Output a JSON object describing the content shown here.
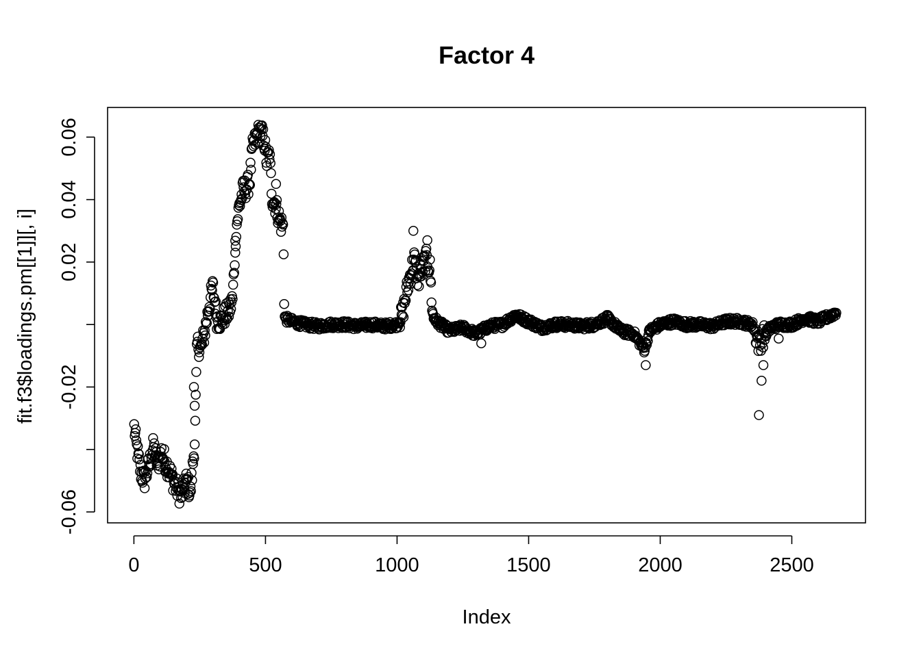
{
  "chart_data": {
    "type": "scatter",
    "title": "Factor 4",
    "xlabel": "Index",
    "ylabel": "fit.f3$loadings.pm[[1]][, i]",
    "xlim": [
      -100,
      2780
    ],
    "ylim": [
      -0.0635,
      0.0695
    ],
    "xticks": [
      0,
      500,
      1000,
      1500,
      2000,
      2500
    ],
    "xtick_labels": [
      "0",
      "500",
      "1000",
      "1500",
      "2000",
      "2500"
    ],
    "yticks": [
      -0.06,
      -0.04,
      -0.02,
      0.0,
      0.02,
      0.04,
      0.06
    ],
    "ytick_labels": [
      "-0.06",
      "",
      "-0.02",
      "",
      "0.02",
      "0.04",
      "0.06"
    ],
    "marker": "open-circle",
    "grid": false,
    "legend": "none",
    "n_points": 2670,
    "trend": [
      [
        1,
        -0.033
      ],
      [
        10,
        -0.039
      ],
      [
        25,
        -0.047
      ],
      [
        40,
        -0.05
      ],
      [
        60,
        -0.044
      ],
      [
        75,
        -0.039
      ],
      [
        90,
        -0.045
      ],
      [
        105,
        -0.041
      ],
      [
        120,
        -0.044
      ],
      [
        140,
        -0.048
      ],
      [
        160,
        -0.052
      ],
      [
        180,
        -0.055
      ],
      [
        200,
        -0.05
      ],
      [
        215,
        -0.054
      ],
      [
        225,
        -0.044
      ],
      [
        232,
        -0.036
      ],
      [
        240,
        -0.006
      ],
      [
        255,
        -0.008
      ],
      [
        270,
        -0.002
      ],
      [
        285,
        0.006
      ],
      [
        300,
        0.012
      ],
      [
        315,
        0.002
      ],
      [
        330,
        0.001
      ],
      [
        345,
        0.003
      ],
      [
        360,
        0.004
      ],
      [
        375,
        0.008
      ],
      [
        388,
        0.03
      ],
      [
        400,
        0.038
      ],
      [
        415,
        0.043
      ],
      [
        430,
        0.044
      ],
      [
        440,
        0.046
      ],
      [
        450,
        0.056
      ],
      [
        465,
        0.06
      ],
      [
        480,
        0.062
      ],
      [
        495,
        0.059
      ],
      [
        505,
        0.052
      ],
      [
        515,
        0.055
      ],
      [
        525,
        0.041
      ],
      [
        540,
        0.038
      ],
      [
        555,
        0.033
      ],
      [
        568,
        0.031
      ],
      [
        572,
        0.002
      ],
      [
        600,
        0.001
      ],
      [
        650,
        0.0
      ],
      [
        700,
        -0.0005
      ],
      [
        750,
        0.0
      ],
      [
        800,
        0.0
      ],
      [
        850,
        -0.0005
      ],
      [
        900,
        0.0
      ],
      [
        950,
        -0.0005
      ],
      [
        1000,
        0.0
      ],
      [
        1020,
        0.003
      ],
      [
        1035,
        0.01
      ],
      [
        1050,
        0.016
      ],
      [
        1065,
        0.021
      ],
      [
        1080,
        0.014
      ],
      [
        1095,
        0.018
      ],
      [
        1110,
        0.021
      ],
      [
        1125,
        0.018
      ],
      [
        1135,
        0.003
      ],
      [
        1150,
        0.001
      ],
      [
        1200,
        -0.002
      ],
      [
        1250,
        -0.001
      ],
      [
        1300,
        -0.003
      ],
      [
        1350,
        -0.0005
      ],
      [
        1400,
        0.0
      ],
      [
        1450,
        0.003
      ],
      [
        1500,
        0.001
      ],
      [
        1550,
        -0.001
      ],
      [
        1600,
        0.0
      ],
      [
        1650,
        0.0
      ],
      [
        1700,
        -0.0005
      ],
      [
        1750,
        0.0
      ],
      [
        1800,
        0.002
      ],
      [
        1850,
        -0.002
      ],
      [
        1900,
        -0.003
      ],
      [
        1940,
        -0.008
      ],
      [
        1960,
        -0.002
      ],
      [
        2000,
        0.0
      ],
      [
        2050,
        0.001
      ],
      [
        2100,
        0.0
      ],
      [
        2150,
        0.0
      ],
      [
        2200,
        -0.0005
      ],
      [
        2250,
        0.001
      ],
      [
        2300,
        0.001
      ],
      [
        2350,
        0.0
      ],
      [
        2375,
        -0.006
      ],
      [
        2390,
        -0.004
      ],
      [
        2420,
        -0.001
      ],
      [
        2450,
        0.0
      ],
      [
        2500,
        0.0
      ],
      [
        2550,
        0.002
      ],
      [
        2600,
        0.001
      ],
      [
        2650,
        0.003
      ],
      [
        2670,
        0.004
      ]
    ],
    "outliers": [
      [
        228,
        -0.02
      ],
      [
        231,
        -0.026
      ],
      [
        385,
        0.023
      ],
      [
        540,
        0.045
      ],
      [
        2375,
        -0.029
      ],
      [
        2385,
        -0.018
      ],
      [
        2392,
        -0.013
      ],
      [
        2450,
        -0.0045
      ],
      [
        1062,
        0.03
      ],
      [
        1115,
        0.027
      ],
      [
        1320,
        -0.006
      ],
      [
        1945,
        -0.013
      ]
    ]
  }
}
